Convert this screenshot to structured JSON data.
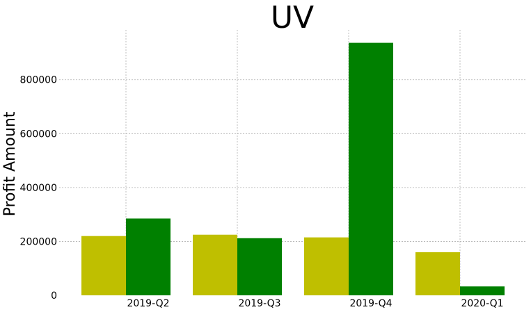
{
  "chart_data": {
    "type": "bar",
    "title": "UV",
    "xlabel": "",
    "ylabel": "Profit Amount",
    "categories": [
      "2019-Q2",
      "2019-Q3",
      "2019-Q4",
      "2020-Q1"
    ],
    "series": [
      {
        "color": "#bfbf00",
        "values": [
          220000,
          225000,
          215000,
          160000
        ]
      },
      {
        "color": "#008000",
        "values": [
          285000,
          212000,
          937000,
          33000
        ]
      }
    ],
    "yticks": [
      0,
      200000,
      400000,
      600000,
      800000
    ],
    "ytick_labels": [
      "0",
      "200000",
      "400000",
      "600000",
      "800000"
    ],
    "ylim": [
      0,
      985000
    ],
    "grid": true,
    "legend": "none"
  }
}
